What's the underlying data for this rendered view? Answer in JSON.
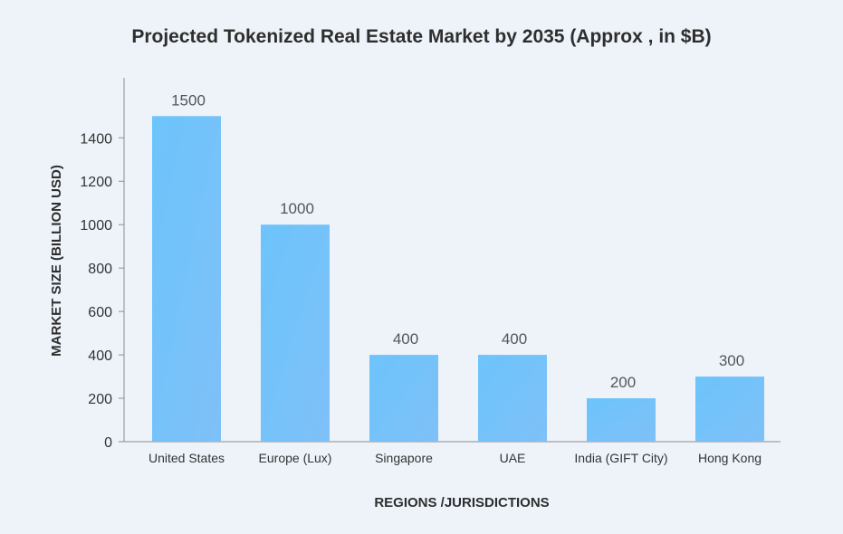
{
  "chart_data": {
    "type": "bar",
    "title": "Projected Tokenized Real Estate Market by 2035 (Approx , in $B)",
    "xlabel": "REGIONS /JURISDICTIONS",
    "ylabel": "MARKET SIZE (BILLION USD)",
    "categories": [
      "United States",
      "Europe (Lux)",
      "Singapore",
      "UAE",
      "India (GIFT City)",
      "Hong Kong"
    ],
    "values": [
      1500,
      1000,
      400,
      400,
      200,
      300
    ],
    "data_labels": [
      "1500",
      "1000",
      "400",
      "400",
      "200",
      "300"
    ],
    "yticks": [
      0,
      200,
      400,
      600,
      800,
      1000,
      1200,
      1400
    ],
    "ylim": [
      0,
      1600
    ],
    "grid": false,
    "legend": "none",
    "colors": {
      "bar_top": "#6cc4fb",
      "bar_bottom": "#7fc0f8",
      "background": "#eef3fa",
      "axis": "#8c8c8c"
    }
  }
}
